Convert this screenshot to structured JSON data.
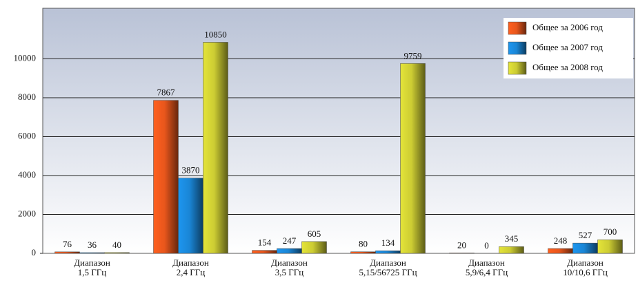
{
  "chart_data": {
    "type": "bar",
    "categories": [
      "Диапазон\n1,5 ГГц",
      "Диапазон\n2,4 ГГц",
      "Диапазон\n3,5 ГГц",
      "Диапазон\n5,15/56725 ГГц",
      "Диапазон\n5,9/6,4 ГГц",
      "Диапазон\n10/10,6 ГГц"
    ],
    "series": [
      {
        "name": "Общее за 2006 год",
        "color": "#e8561c",
        "values": [
          76,
          7867,
          154,
          80,
          20,
          248
        ]
      },
      {
        "name": "Общее за 2007 год",
        "color": "#1a86d6",
        "values": [
          36,
          3870,
          247,
          134,
          0,
          527
        ]
      },
      {
        "name": "Общее за 2008 год",
        "color": "#cccc33",
        "values": [
          40,
          10850,
          605,
          9759,
          345,
          700
        ]
      }
    ],
    "ylim": [
      0,
      12600
    ],
    "yticks": [
      0,
      2000,
      4000,
      6000,
      8000,
      10000
    ],
    "grid": true,
    "legend": "top-right"
  }
}
